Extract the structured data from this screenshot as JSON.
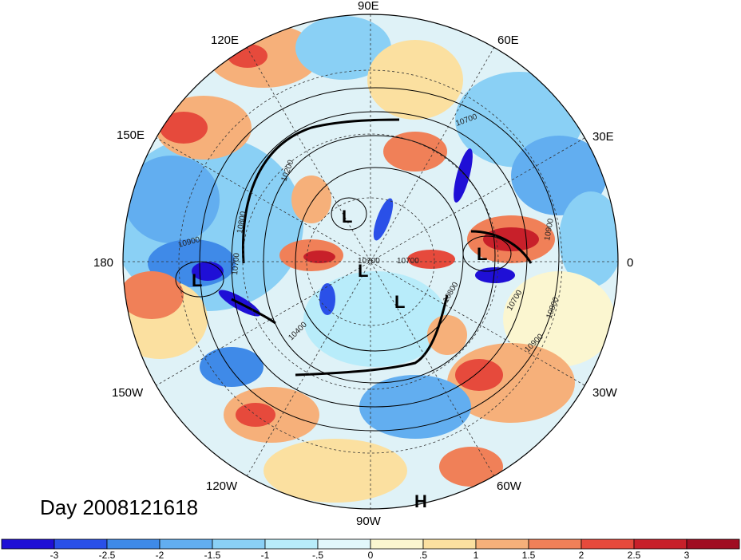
{
  "title": "Day 2008121618",
  "longitude_labels": [
    "90E",
    "60E",
    "30E",
    "0",
    "30W",
    "60W",
    "90W",
    "120W",
    "150W",
    "180",
    "150E",
    "120E"
  ],
  "pressure_systems": [
    "L",
    "L",
    "L",
    "L",
    "L",
    "H"
  ],
  "contour_labels": [
    "10700",
    "10200",
    "10800",
    "10900",
    "10900",
    "10700",
    "10700",
    "10800",
    "10400",
    "10700",
    "10900",
    "10800",
    "10700"
  ],
  "colorbar": {
    "ticks": [
      "-3",
      "-2.5",
      "-2",
      "-1.5",
      "-1",
      "-.5",
      "0",
      ".5",
      "1",
      "1.5",
      "2",
      "2.5",
      "3"
    ],
    "colors": [
      "#1f0fd6",
      "#2a50e8",
      "#3f8ae8",
      "#62aef0",
      "#8ad0f5",
      "#b8ecfa",
      "#e2f7fb",
      "#fbf6d0",
      "#fbe0a0",
      "#f6b07a",
      "#f08058",
      "#e64a3c",
      "#c8202a",
      "#a00d22"
    ]
  },
  "map_colors": {
    "ocean_background": "#dff2f7",
    "coast_lines": "#222222"
  }
}
